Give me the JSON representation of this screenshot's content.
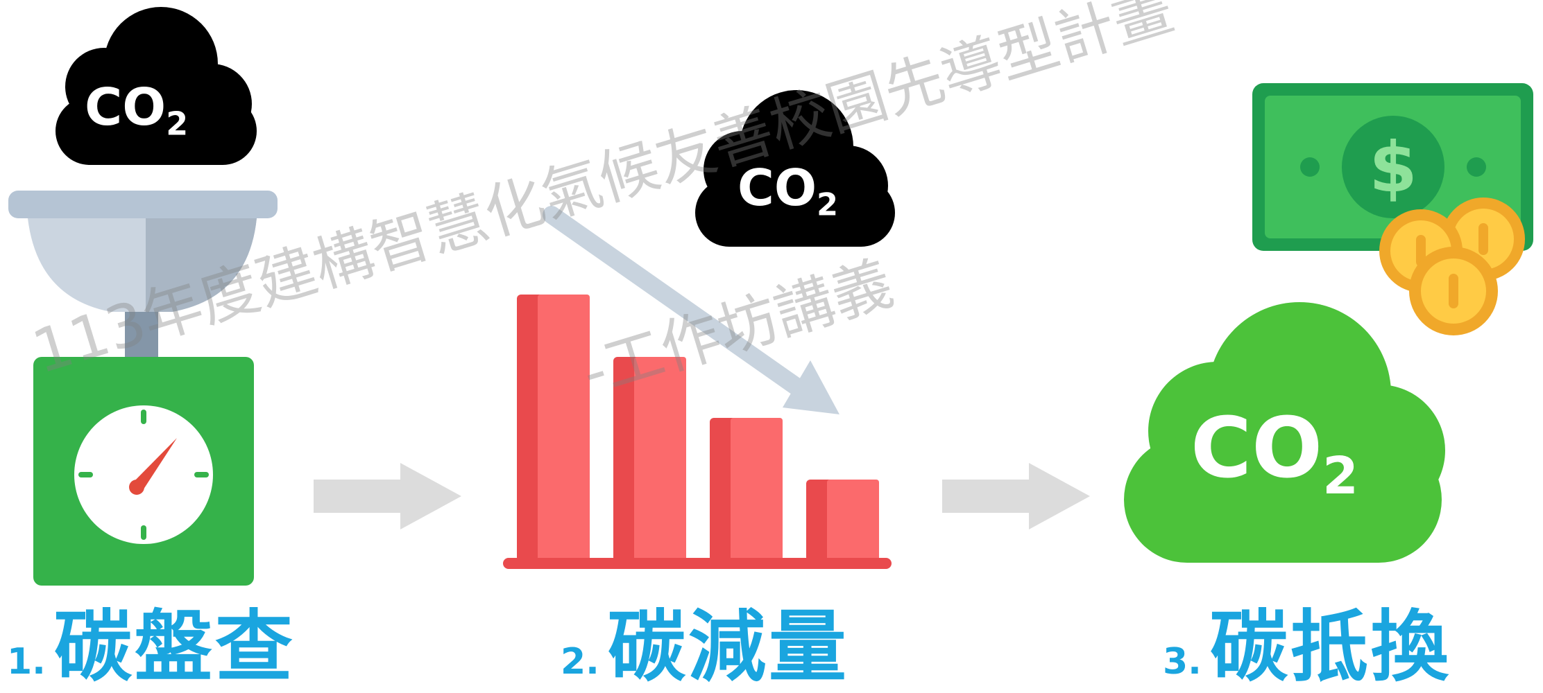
{
  "steps": [
    {
      "number": "1.",
      "title": "碳盤查",
      "icon_badge": "CO2",
      "icon": "scale-icon"
    },
    {
      "number": "2.",
      "title": "碳減量",
      "icon_badge": "CO2",
      "icon": "declining-bar-chart-icon"
    },
    {
      "number": "3.",
      "title": "碳抵換",
      "icon_badge": "CO2",
      "icon": "money-and-coins-icon"
    }
  ],
  "watermark": {
    "line1": "113年度建構智慧化氣候友善校園先導型計畫",
    "line2": "-工作坊講義"
  },
  "colors": {
    "label_blue": "#1aa5df",
    "scale_green": "#35b24a",
    "bar_red": "#f25a5c",
    "cloud_green": "#4cc23a",
    "arrow_gray": "#dcdcdc",
    "cloud_black": "#000000"
  }
}
